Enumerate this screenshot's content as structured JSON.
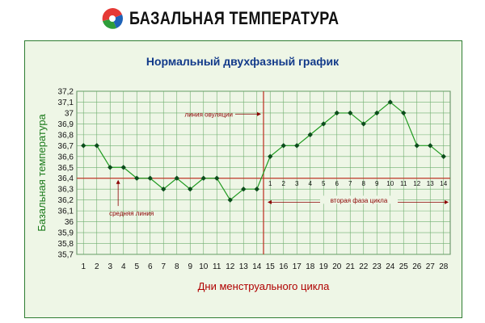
{
  "header": {
    "brand": "БАЗАЛЬНАЯ ТЕМПЕРАТУРА",
    "logo_icon": "tricolor-swirl-logo"
  },
  "colors": {
    "panel_bg": "#eef6e6",
    "line": "#1f9a1f",
    "marker": "#0b4d1b",
    "ref_line": "#c0392b",
    "title": "#123a8a"
  },
  "chart_data": {
    "type": "line",
    "title": "Нормальный двухфазный график",
    "xlabel": "Дни  менструального цикла",
    "ylabel": "Базальная температура",
    "x": [
      1,
      2,
      3,
      4,
      5,
      6,
      7,
      8,
      9,
      10,
      11,
      12,
      13,
      14,
      15,
      16,
      17,
      18,
      19,
      20,
      21,
      22,
      23,
      24,
      25,
      26,
      27,
      28
    ],
    "y": [
      36.7,
      36.7,
      36.5,
      36.5,
      36.4,
      36.4,
      36.3,
      36.4,
      36.3,
      36.4,
      36.4,
      36.2,
      36.3,
      36.3,
      36.6,
      36.7,
      36.7,
      36.8,
      36.9,
      37.0,
      37.0,
      36.9,
      37.0,
      37.1,
      37.0,
      36.7,
      36.7,
      36.6
    ],
    "ylim": [
      35.7,
      37.2
    ],
    "yticks": [
      "35,7",
      "35,8",
      "35,9",
      "36",
      "36,1",
      "36,2",
      "36,3",
      "36,4",
      "36,5",
      "36,6",
      "36,7",
      "36,8",
      "36,9",
      "37",
      "37,1",
      "37,2"
    ],
    "xticks": [
      "1",
      "2",
      "3",
      "4",
      "5",
      "6",
      "7",
      "8",
      "9",
      "10",
      "11",
      "12",
      "13",
      "14",
      "15",
      "16",
      "17",
      "18",
      "19",
      "20",
      "21",
      "22",
      "23",
      "24",
      "25",
      "26",
      "27",
      "28"
    ],
    "grid": true,
    "reference_lines": {
      "average": {
        "value": 36.4,
        "label": "средняя линия"
      },
      "ovulation": {
        "day": 14,
        "label": "линия овуляции"
      }
    },
    "second_phase": {
      "label": "вторая фаза цикла",
      "day_numbers": [
        "1",
        "2",
        "3",
        "4",
        "5",
        "6",
        "7",
        "8",
        "9",
        "10",
        "11",
        "12",
        "13",
        "14"
      ]
    }
  }
}
